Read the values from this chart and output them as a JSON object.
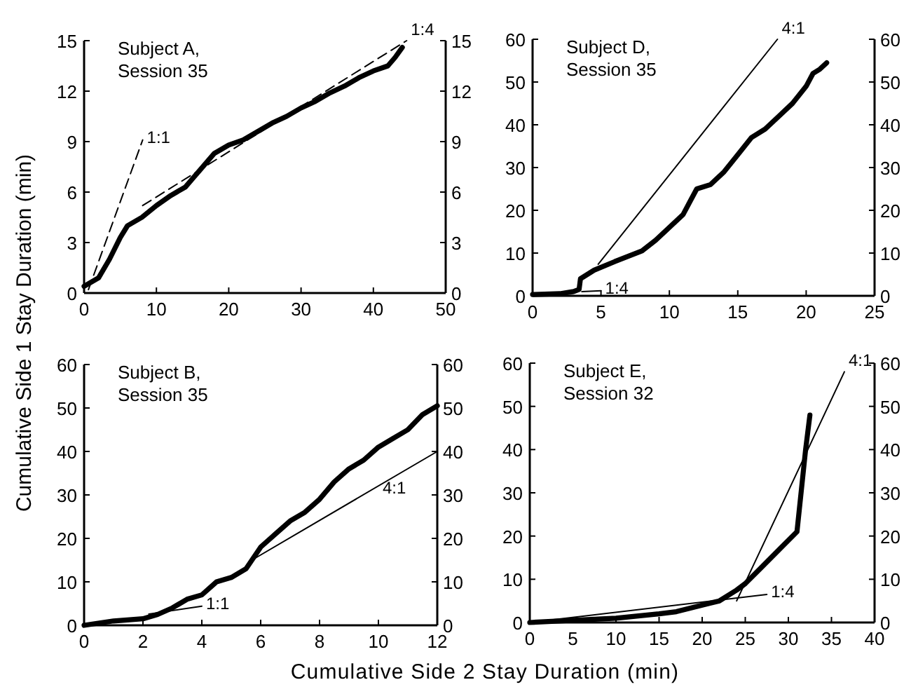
{
  "chart_data": [
    {
      "type": "line",
      "title": "Subject A,",
      "subtitle": "Session 35",
      "ylabel": "Cumulative Side 1 Stay Duration (min)",
      "xlim": [
        0,
        50
      ],
      "xticks": [
        0,
        10,
        20,
        30,
        40,
        50
      ],
      "ylim": [
        0,
        15
      ],
      "yticks": [
        0,
        3,
        6,
        9,
        12,
        15
      ],
      "y2lim": [
        0,
        15
      ],
      "y2ticks": [
        0,
        3,
        6,
        9,
        12,
        15
      ],
      "marker": "none",
      "grid": false,
      "series": [
        {
          "color": "#000000",
          "x": [
            0,
            2,
            3.5,
            5,
            6,
            8,
            10,
            12,
            14,
            16,
            18,
            20,
            22,
            24,
            26,
            28,
            30,
            32,
            34,
            36,
            38,
            40,
            42,
            43,
            44
          ],
          "values": [
            0.4,
            0.9,
            2,
            3.3,
            4,
            4.5,
            5.2,
            5.8,
            6.3,
            7.3,
            8.3,
            8.8,
            9.1,
            9.6,
            10.1,
            10.5,
            11,
            11.4,
            11.9,
            12.3,
            12.8,
            13.2,
            13.5,
            14,
            14.6
          ]
        },
        {
          "color": "#000000",
          "line_style": "dashed",
          "x": [
            0.6,
            8.1
          ],
          "values": [
            0.2,
            9.1
          ]
        },
        {
          "color": "#000000",
          "line_style": "dashed",
          "x": [
            8.1,
            44.6
          ],
          "values": [
            5.2,
            15
          ]
        }
      ],
      "annotations": [
        {
          "text": "1:1",
          "x": 8.1,
          "y": 9.1
        },
        {
          "text": "1:4",
          "x": 44.6,
          "y": 15
        }
      ]
    },
    {
      "type": "line",
      "title": "Subject D,",
      "subtitle": "Session 35",
      "xlim": [
        0,
        25
      ],
      "xticks": [
        0,
        5,
        10,
        15,
        20,
        25
      ],
      "ylim": [
        0,
        60
      ],
      "yticks": [
        0,
        10,
        20,
        30,
        40,
        50,
        60
      ],
      "y2lim": [
        0,
        60
      ],
      "y2ticks": [
        0,
        10,
        20,
        30,
        40,
        50,
        60
      ],
      "marker": "none",
      "grid": false,
      "series": [
        {
          "color": "#000000",
          "x": [
            0,
            2,
            3,
            3.4,
            3.5,
            4.5,
            6,
            8,
            9,
            10,
            11,
            11.5,
            12,
            13,
            14,
            15,
            16,
            17,
            18,
            19,
            20,
            20.5,
            21,
            21.5
          ],
          "values": [
            0.3,
            0.5,
            1,
            1.5,
            4,
            6,
            8,
            10.5,
            13,
            16,
            19,
            22,
            25,
            26,
            29,
            33,
            37,
            39,
            42,
            45,
            49,
            52,
            53,
            54.5
          ]
        },
        {
          "color": "#000000",
          "line_style": "solid",
          "x": [
            4.8,
            17.9
          ],
          "values": [
            7.4,
            60
          ]
        },
        {
          "color": "#000000",
          "line_style": "solid",
          "x": [
            3.6,
            5
          ],
          "values": [
            1,
            1.2
          ]
        }
      ],
      "annotations": [
        {
          "text": "4:1",
          "x": 17.9,
          "y": 60
        },
        {
          "text": "1:4",
          "x": 5,
          "y": 1.2
        }
      ]
    },
    {
      "type": "line",
      "title": "Subject B,",
      "subtitle": "Session 35",
      "xlabel": "Cumulative Side 2 Stay Duration (min)",
      "xlim": [
        0,
        12
      ],
      "xticks": [
        0,
        2,
        4,
        6,
        8,
        10,
        12
      ],
      "ylim": [
        0,
        60
      ],
      "yticks": [
        0,
        10,
        20,
        30,
        40,
        50,
        60
      ],
      "y2lim": [
        0,
        60
      ],
      "y2ticks": [
        0,
        10,
        20,
        30,
        40,
        50,
        60
      ],
      "marker": "none",
      "grid": false,
      "series": [
        {
          "color": "#000000",
          "x": [
            0,
            1,
            2,
            2.5,
            3,
            3.5,
            4,
            4.5,
            5,
            5.5,
            6,
            6.5,
            7,
            7.5,
            8,
            8.5,
            9,
            9.5,
            10,
            10.5,
            11,
            11.5,
            12
          ],
          "values": [
            0,
            1,
            1.5,
            2.5,
            4,
            6,
            7,
            10,
            11,
            13,
            18,
            21,
            24,
            26,
            29,
            33,
            36,
            38,
            41,
            43,
            45,
            48.5,
            50.5
          ]
        },
        {
          "color": "#000000",
          "line_style": "solid",
          "x": [
            5.7,
            12
          ],
          "values": [
            15,
            40
          ]
        },
        {
          "color": "#000000",
          "line_style": "solid",
          "x": [
            2.2,
            4
          ],
          "values": [
            2.6,
            4.4
          ]
        }
      ],
      "annotations": [
        {
          "text": "4:1",
          "x": 10,
          "y": 31
        },
        {
          "text": "1:1",
          "x": 4,
          "y": 4.4
        }
      ]
    },
    {
      "type": "line",
      "title": "Subject E,",
      "subtitle": "Session 32",
      "xlim": [
        0,
        40
      ],
      "xticks": [
        0,
        5,
        10,
        15,
        20,
        25,
        30,
        35,
        40
      ],
      "ylim": [
        0,
        60
      ],
      "yticks": [
        0,
        10,
        20,
        30,
        40,
        50,
        60
      ],
      "y2lim": [
        0,
        60
      ],
      "y2ticks": [
        0,
        10,
        20,
        30,
        40,
        50,
        60
      ],
      "marker": "none",
      "grid": false,
      "series": [
        {
          "color": "#000000",
          "x": [
            0,
            5,
            10,
            15,
            17,
            20,
            22,
            24,
            25,
            27,
            29,
            31,
            32,
            32.5
          ],
          "values": [
            0,
            0.5,
            1,
            2,
            2.5,
            4,
            5,
            7.5,
            9,
            13,
            17,
            21,
            40,
            48
          ]
        },
        {
          "color": "#000000",
          "line_style": "solid",
          "x": [
            24,
            36.5
          ],
          "values": [
            5,
            58
          ]
        },
        {
          "color": "#000000",
          "line_style": "solid",
          "x": [
            0,
            27.5
          ],
          "values": [
            0,
            6.5
          ]
        }
      ],
      "annotations": [
        {
          "text": "4:1",
          "x": 36.5,
          "y": 58
        },
        {
          "text": "1:4",
          "x": 27.5,
          "y": 6.5
        }
      ]
    }
  ]
}
